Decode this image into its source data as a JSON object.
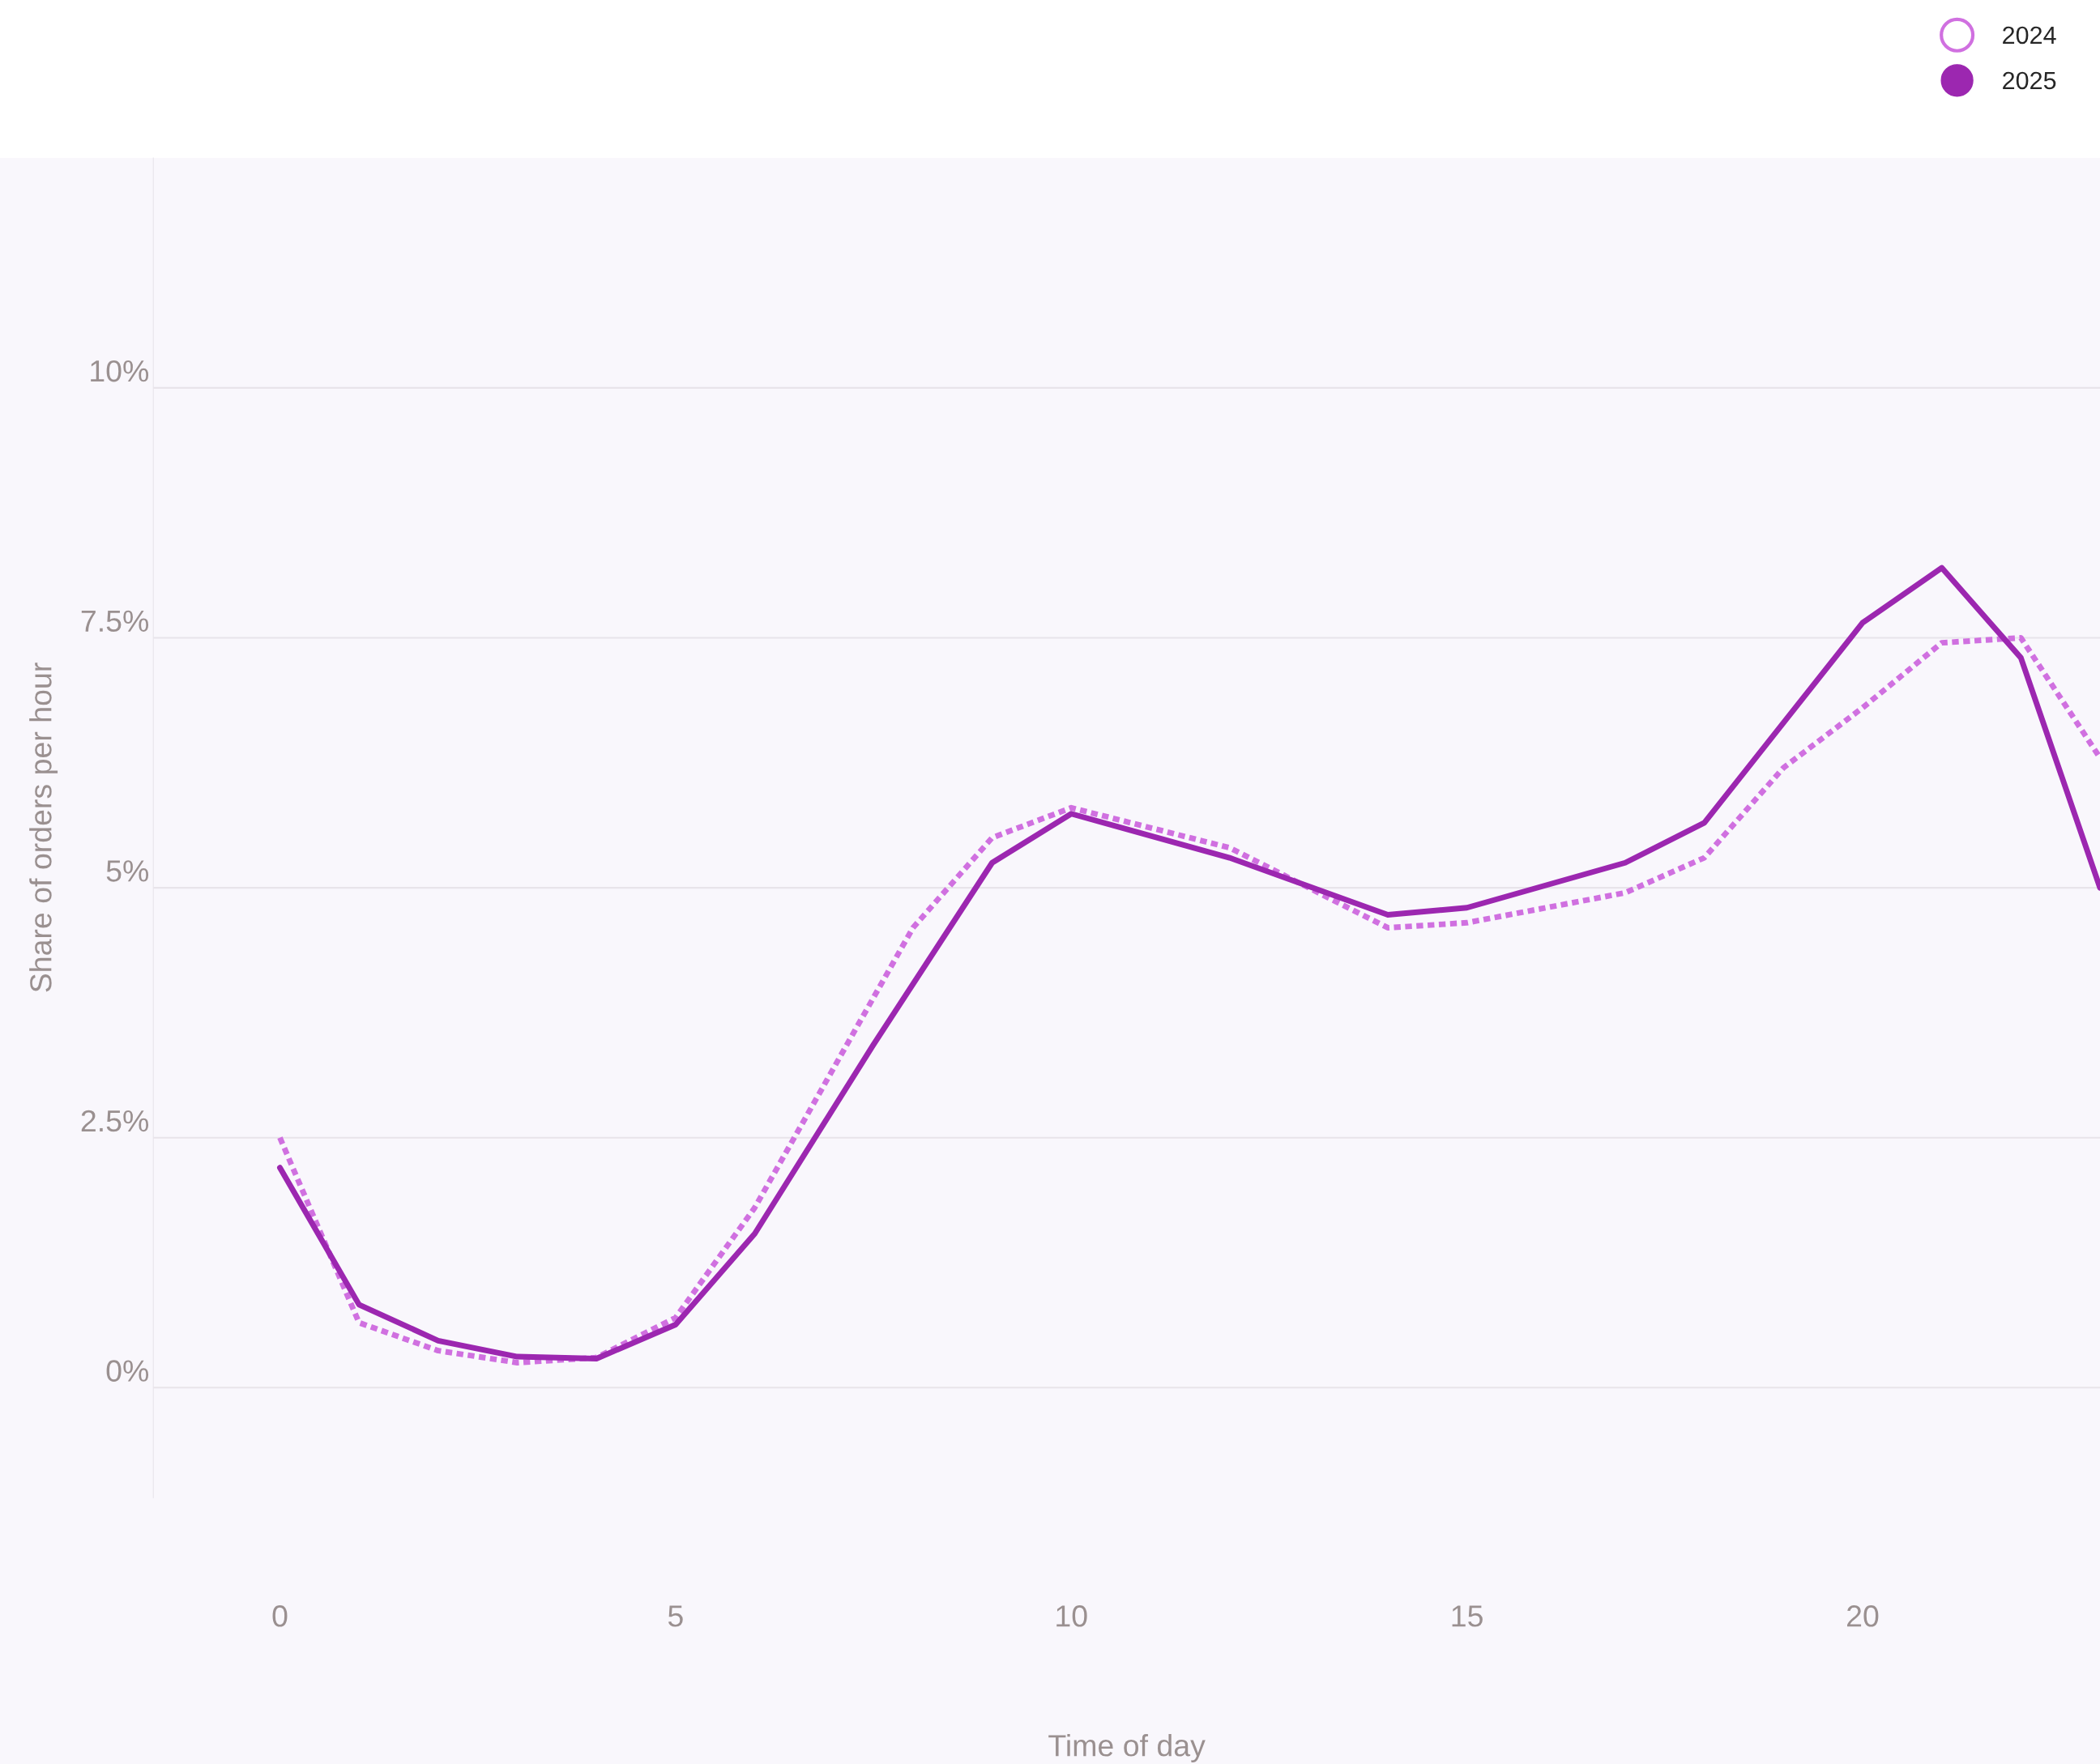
{
  "chart_data": {
    "type": "line",
    "xlabel": "Time of day",
    "ylabel": "Share of orders per hour",
    "xlim": [
      -1.6,
      23
    ],
    "xticks": [
      0,
      5,
      10,
      15,
      20
    ],
    "ylim": [
      -1.1,
      12.3
    ],
    "yticks": [
      {
        "value": 0,
        "label": "0%"
      },
      {
        "value": 2.5,
        "label": "2.5%"
      },
      {
        "value": 5,
        "label": "5%"
      },
      {
        "value": 7.5,
        "label": "7.5%"
      },
      {
        "value": 10,
        "label": "10%"
      }
    ],
    "grid": "y",
    "legend": "top right",
    "series": [
      {
        "name": "2024",
        "color": "#d070e0",
        "line_style": "dotted",
        "x": [
          0,
          1,
          2,
          3,
          4,
          5,
          6,
          8,
          9,
          10,
          12,
          14,
          15,
          17,
          18,
          19,
          20,
          21,
          22,
          23
        ],
        "values": [
          2.5,
          0.65,
          0.37,
          0.25,
          0.3,
          0.7,
          1.8,
          4.6,
          5.5,
          5.8,
          5.4,
          4.6,
          4.65,
          4.95,
          5.3,
          6.2,
          6.8,
          7.45,
          7.5,
          6.3
        ]
      },
      {
        "name": "2025",
        "color": "#9c27b0",
        "line_style": "solid",
        "x": [
          0,
          1,
          2,
          3,
          4,
          5,
          6,
          7.5,
          9,
          10,
          12,
          14,
          15,
          17,
          18,
          19,
          20,
          21,
          22,
          23
        ],
        "values": [
          2.2,
          0.83,
          0.47,
          0.31,
          0.29,
          0.63,
          1.54,
          3.43,
          5.25,
          5.74,
          5.3,
          4.73,
          4.8,
          5.25,
          5.65,
          6.65,
          7.65,
          8.2,
          7.3,
          5.0
        ]
      }
    ]
  }
}
